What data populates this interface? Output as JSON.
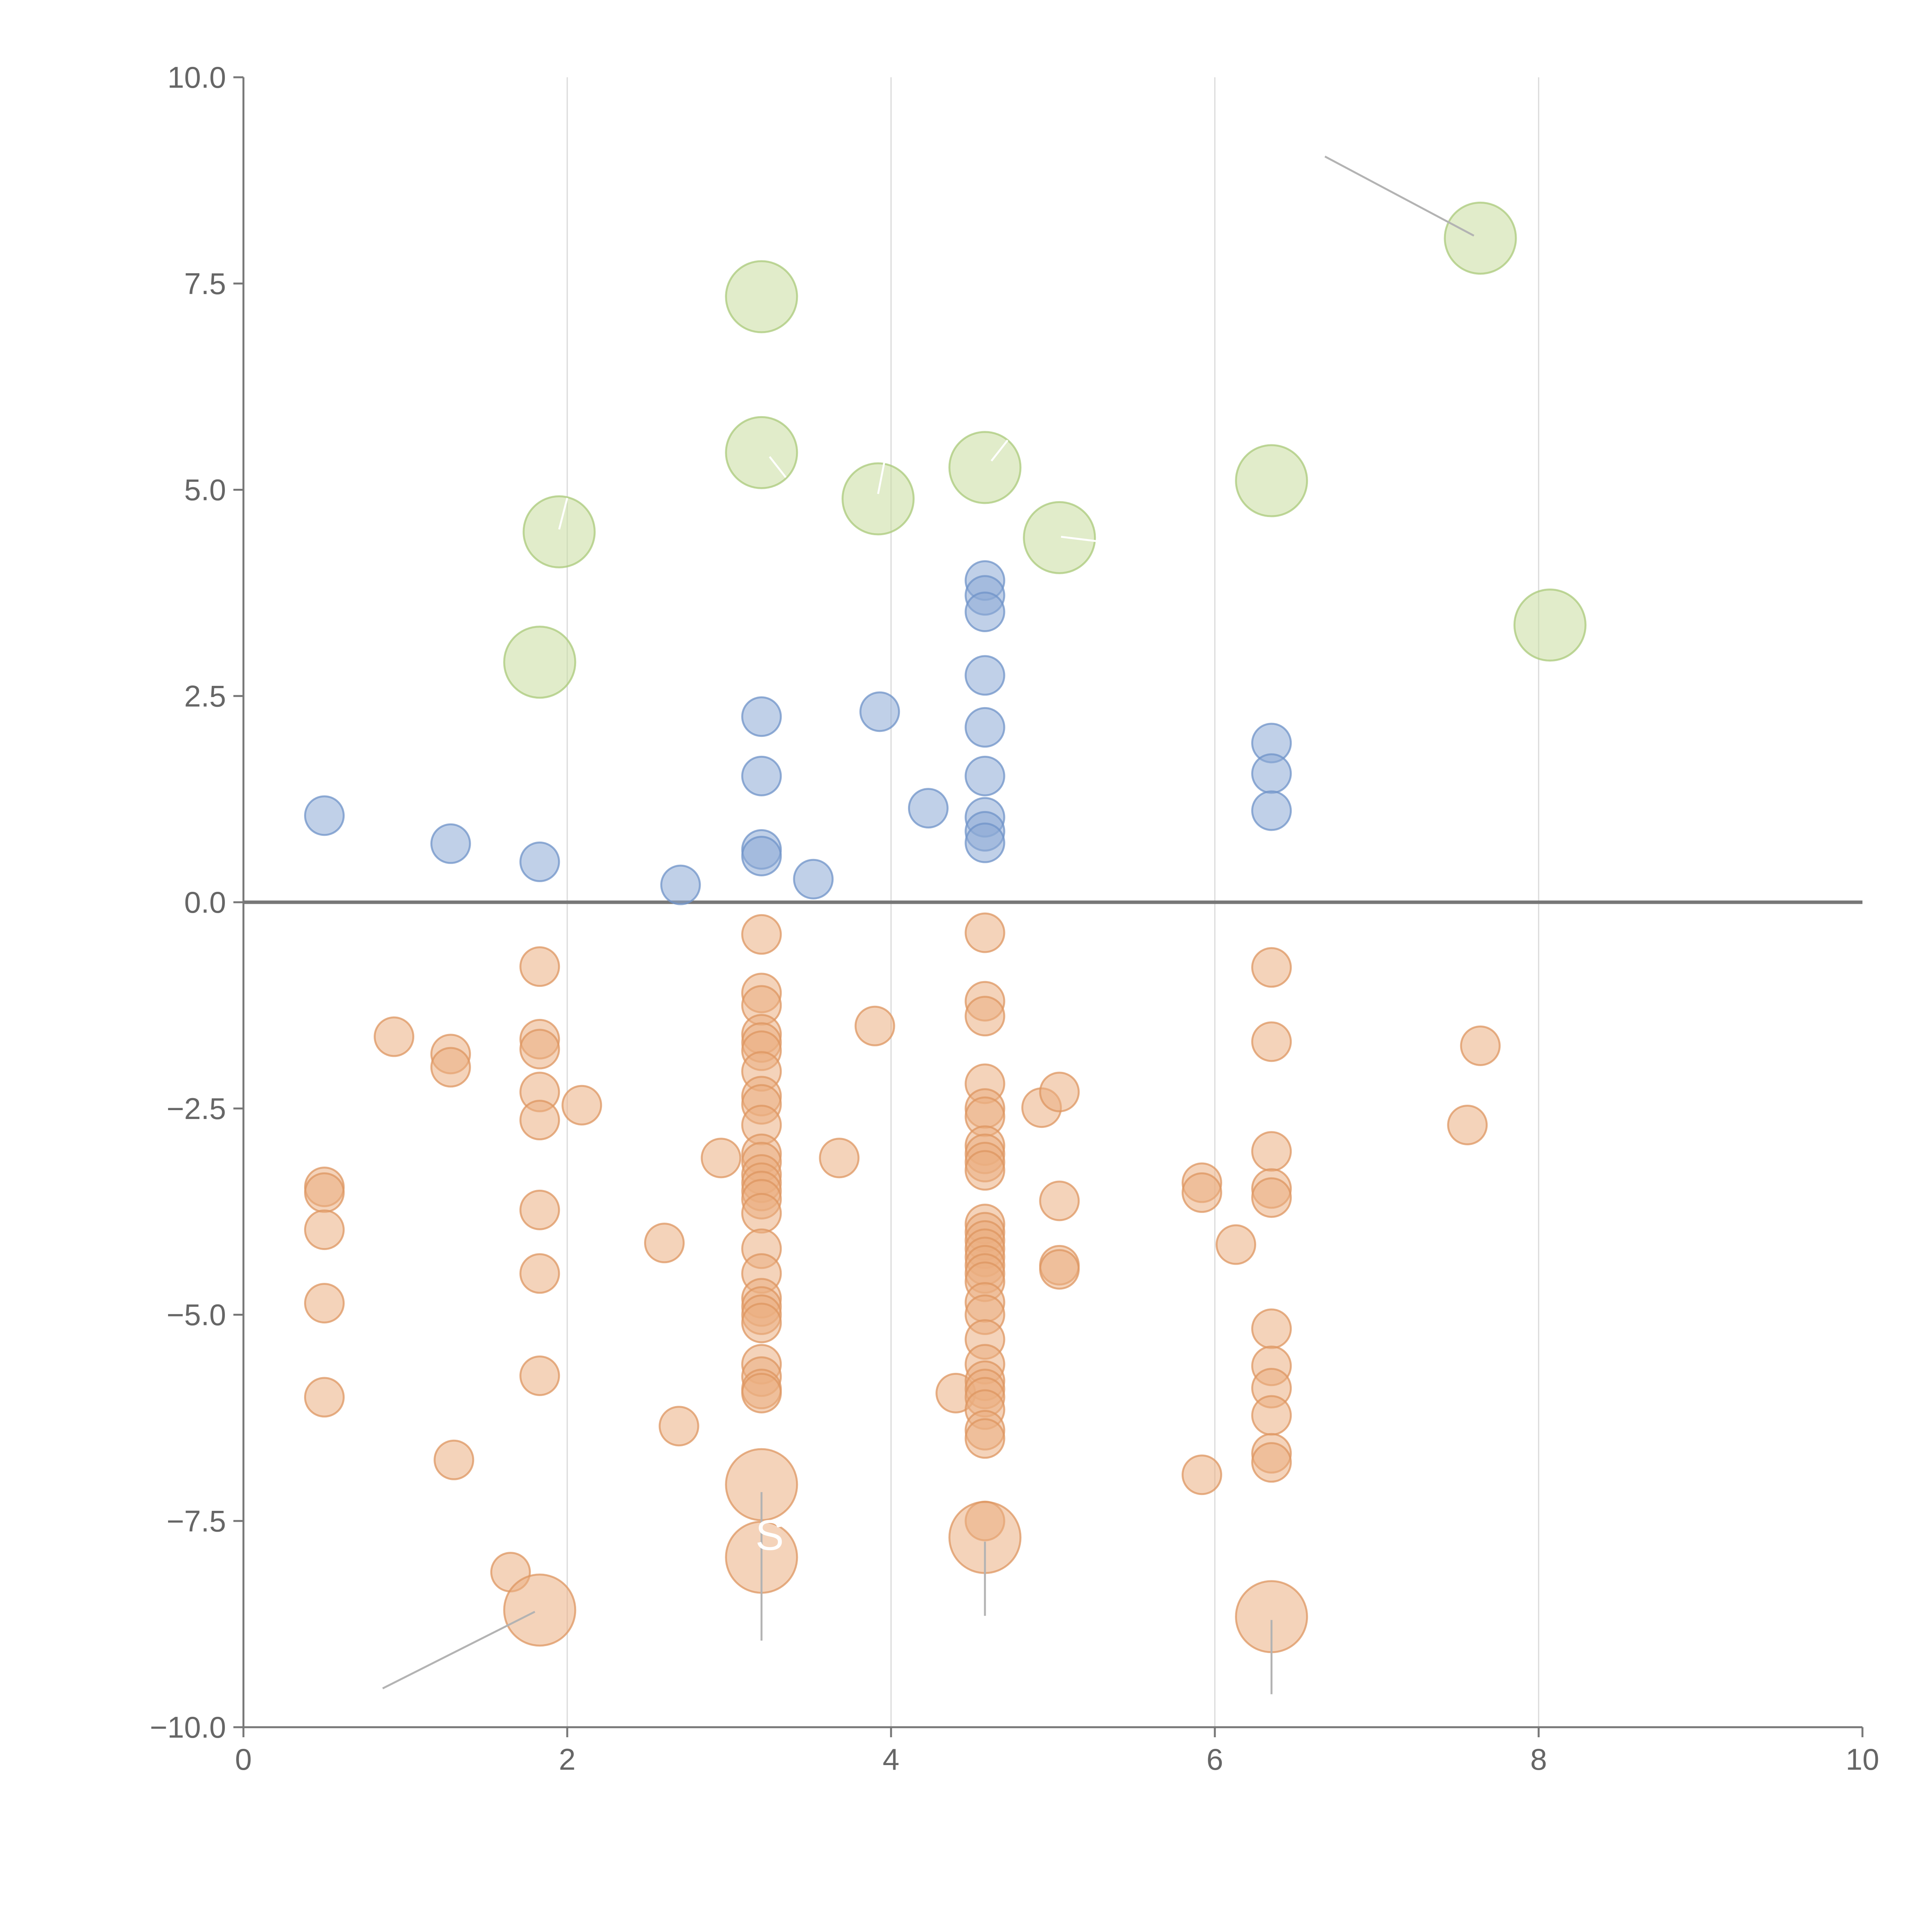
{
  "chart_data": {
    "type": "scatter",
    "title": "",
    "xlabel": "",
    "ylabel": "",
    "xlim": [
      0,
      10
    ],
    "ylim": [
      -10,
      10
    ],
    "grid": "vertical",
    "x_ticks": [
      "0",
      "2",
      "4",
      "6",
      "8",
      "10"
    ],
    "x_tick_values": [
      0,
      2,
      4,
      6,
      8,
      10
    ],
    "y_ticks": [
      "10.0",
      "7.5",
      "5.0",
      "2.5",
      "0.0",
      "−2.5",
      "−5.0",
      "−7.5",
      "−10.0"
    ],
    "y_tick_values": [
      10,
      7.5,
      5,
      2.5,
      0,
      -2.5,
      -5,
      -7.5,
      -10
    ],
    "inner_label": "S",
    "inner_label_pos": [
      3.25,
      -7.85
    ],
    "series": [
      {
        "name": "positive",
        "color": "#8DA9D6",
        "stroke": "#6F93C8",
        "size": "small",
        "points": [
          [
            0.5,
            1.05
          ],
          [
            1.28,
            0.71
          ],
          [
            1.83,
            0.49
          ],
          [
            2.7,
            0.21
          ],
          [
            3.2,
            2.25
          ],
          [
            3.2,
            1.53
          ],
          [
            3.2,
            0.64
          ],
          [
            3.2,
            0.56
          ],
          [
            3.52,
            0.28
          ],
          [
            3.93,
            2.31
          ],
          [
            4.23,
            1.14
          ],
          [
            4.58,
            3.9
          ],
          [
            4.58,
            3.72
          ],
          [
            4.58,
            3.52
          ],
          [
            4.58,
            2.75
          ],
          [
            4.58,
            2.12
          ],
          [
            4.58,
            1.53
          ],
          [
            4.58,
            1.03
          ],
          [
            4.58,
            0.86
          ],
          [
            4.58,
            0.72
          ],
          [
            6.35,
            1.93
          ],
          [
            6.35,
            1.56
          ],
          [
            6.35,
            1.11
          ]
        ]
      },
      {
        "name": "negative",
        "color": "#EBAF82",
        "stroke": "#DE9660",
        "size": "small",
        "points": [
          [
            0.5,
            -3.45
          ],
          [
            0.5,
            -3.52
          ],
          [
            0.5,
            -3.97
          ],
          [
            0.5,
            -4.86
          ],
          [
            0.5,
            -6.0
          ],
          [
            0.93,
            -1.63
          ],
          [
            1.28,
            -1.84
          ],
          [
            1.28,
            -2.0
          ],
          [
            1.3,
            -6.76
          ],
          [
            1.65,
            -8.12
          ],
          [
            1.83,
            -0.78
          ],
          [
            1.83,
            -1.66
          ],
          [
            1.83,
            -1.78
          ],
          [
            1.83,
            -2.3
          ],
          [
            1.83,
            -2.64
          ],
          [
            1.83,
            -3.73
          ],
          [
            1.83,
            -4.5
          ],
          [
            1.83,
            -5.74
          ],
          [
            2.09,
            -2.46
          ],
          [
            2.6,
            -4.13
          ],
          [
            2.69,
            -6.35
          ],
          [
            2.95,
            -3.1
          ],
          [
            3.2,
            -0.39
          ],
          [
            3.2,
            -1.1
          ],
          [
            3.2,
            -1.25
          ],
          [
            3.2,
            -1.6
          ],
          [
            3.2,
            -1.7
          ],
          [
            3.2,
            -1.8
          ],
          [
            3.2,
            -2.05
          ],
          [
            3.2,
            -2.35
          ],
          [
            3.2,
            -2.45
          ],
          [
            3.2,
            -2.7
          ],
          [
            3.2,
            -3.05
          ],
          [
            3.2,
            -3.15
          ],
          [
            3.2,
            -3.3
          ],
          [
            3.2,
            -3.4
          ],
          [
            3.2,
            -3.5
          ],
          [
            3.2,
            -3.6
          ],
          [
            3.2,
            -3.77
          ],
          [
            3.2,
            -4.2
          ],
          [
            3.2,
            -4.5
          ],
          [
            3.2,
            -4.8
          ],
          [
            3.2,
            -4.9
          ],
          [
            3.2,
            -5.0
          ],
          [
            3.2,
            -5.1
          ],
          [
            3.2,
            -5.6
          ],
          [
            3.2,
            -5.75
          ],
          [
            3.2,
            -5.9
          ],
          [
            3.2,
            -5.95
          ],
          [
            3.68,
            -3.1
          ],
          [
            3.9,
            -1.5
          ],
          [
            4.4,
            -5.95
          ],
          [
            4.58,
            -0.37
          ],
          [
            4.58,
            -1.2
          ],
          [
            4.58,
            -1.38
          ],
          [
            4.58,
            -2.2
          ],
          [
            4.58,
            -2.5
          ],
          [
            4.58,
            -2.6
          ],
          [
            4.58,
            -2.95
          ],
          [
            4.58,
            -3.05
          ],
          [
            4.58,
            -3.15
          ],
          [
            4.58,
            -3.25
          ],
          [
            4.58,
            -3.9
          ],
          [
            4.58,
            -4.0
          ],
          [
            4.58,
            -4.1
          ],
          [
            4.58,
            -4.2
          ],
          [
            4.58,
            -4.3
          ],
          [
            4.58,
            -4.4
          ],
          [
            4.58,
            -4.5
          ],
          [
            4.58,
            -4.6
          ],
          [
            4.58,
            -4.85
          ],
          [
            4.58,
            -5.0
          ],
          [
            4.58,
            -5.3
          ],
          [
            4.58,
            -5.6
          ],
          [
            4.58,
            -5.8
          ],
          [
            4.58,
            -5.9
          ],
          [
            4.58,
            -6.0
          ],
          [
            4.58,
            -6.15
          ],
          [
            4.58,
            -6.4
          ],
          [
            4.58,
            -6.5
          ],
          [
            4.58,
            -7.5
          ],
          [
            4.93,
            -2.49
          ],
          [
            5.04,
            -2.3
          ],
          [
            5.04,
            -3.62
          ],
          [
            5.04,
            -4.4
          ],
          [
            5.04,
            -4.45
          ],
          [
            5.92,
            -3.4
          ],
          [
            5.92,
            -3.52
          ],
          [
            5.92,
            -6.94
          ],
          [
            6.13,
            -4.15
          ],
          [
            6.35,
            -0.79
          ],
          [
            6.35,
            -1.69
          ],
          [
            6.35,
            -3.02
          ],
          [
            6.35,
            -3.47
          ],
          [
            6.35,
            -3.58
          ],
          [
            6.35,
            -5.17
          ],
          [
            6.35,
            -5.62
          ],
          [
            6.35,
            -5.89
          ],
          [
            6.35,
            -6.22
          ],
          [
            6.35,
            -6.68
          ],
          [
            6.35,
            -6.79
          ],
          [
            7.56,
            -2.7
          ],
          [
            7.64,
            -1.74
          ]
        ]
      },
      {
        "name": "positive-large",
        "color": "#C8DC9E",
        "stroke": "#A9C979",
        "size": "large",
        "points": [
          [
            1.83,
            2.91
          ],
          [
            1.95,
            4.49
          ],
          [
            3.2,
            7.34
          ],
          [
            3.2,
            5.45
          ],
          [
            3.92,
            4.89
          ],
          [
            4.58,
            5.27
          ],
          [
            5.04,
            4.42
          ],
          [
            6.35,
            5.11
          ],
          [
            7.64,
            8.05
          ],
          [
            8.07,
            3.36
          ]
        ]
      },
      {
        "name": "negative-large",
        "color": "#EBAF82",
        "stroke": "#DE9660",
        "size": "large",
        "points": [
          [
            1.83,
            -8.58
          ],
          [
            3.2,
            -7.06
          ],
          [
            3.2,
            -7.94
          ],
          [
            4.58,
            -7.7
          ],
          [
            6.35,
            -8.66
          ]
        ]
      }
    ],
    "annotations": [
      {
        "from": [
          0.86,
          -9.53
        ],
        "to": [
          1.8,
          -8.6
        ],
        "color": "#b3b3b3"
      },
      {
        "from": [
          3.2,
          -7.15
        ],
        "to": [
          3.2,
          -8.95
        ],
        "color": "#b3b3b3"
      },
      {
        "from": [
          4.58,
          -7.75
        ],
        "to": [
          4.58,
          -8.65
        ],
        "color": "#b3b3b3"
      },
      {
        "from": [
          6.35,
          -8.7
        ],
        "to": [
          6.35,
          -9.6
        ],
        "color": "#b3b3b3"
      },
      {
        "from": [
          6.68,
          9.04
        ],
        "to": [
          7.6,
          8.08
        ],
        "color": "#b3b3b3"
      },
      {
        "from": [
          1.95,
          4.52
        ],
        "to": [
          2.0,
          4.9
        ],
        "color": "#ffffff"
      },
      {
        "from": [
          3.25,
          5.4
        ],
        "to": [
          3.35,
          5.15
        ],
        "color": "#ffffff"
      },
      {
        "from": [
          3.92,
          4.95
        ],
        "to": [
          3.96,
          5.35
        ],
        "color": "#ffffff"
      },
      {
        "from": [
          4.62,
          5.35
        ],
        "to": [
          4.72,
          5.6
        ],
        "color": "#ffffff"
      },
      {
        "from": [
          5.05,
          4.43
        ],
        "to": [
          5.3,
          4.37
        ],
        "color": "#ffffff"
      }
    ]
  }
}
